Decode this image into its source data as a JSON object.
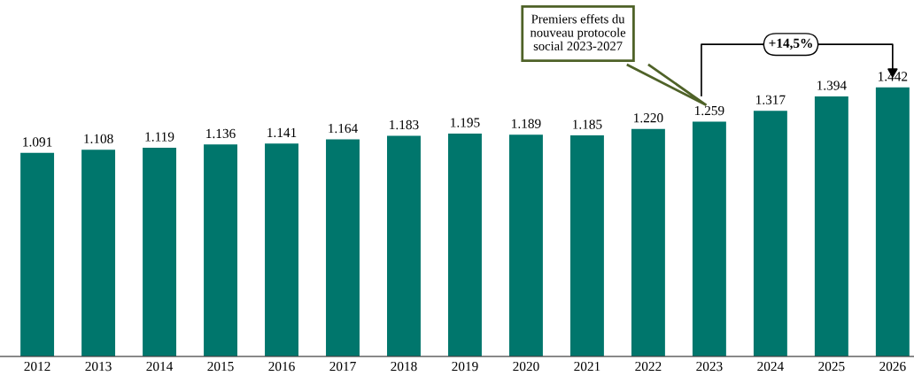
{
  "chart_data": {
    "type": "bar",
    "categories": [
      "2012",
      "2013",
      "2014",
      "2015",
      "2016",
      "2017",
      "2018",
      "2019",
      "2020",
      "2021",
      "2022",
      "2023",
      "2024",
      "2025",
      "2026"
    ],
    "values": [
      1091,
      1108,
      1119,
      1136,
      1141,
      1164,
      1183,
      1195,
      1189,
      1185,
      1220,
      1259,
      1317,
      1394,
      1442
    ],
    "value_labels": [
      "1.091",
      "1.108",
      "1.119",
      "1.136",
      "1.141",
      "1.164",
      "1.183",
      "1.195",
      "1.189",
      "1.185",
      "1.220",
      "1.259",
      "1.317",
      "1.394",
      "1.442"
    ],
    "color": "#00766c",
    "grid": false,
    "legend": false,
    "annotations": [
      "Premiers effets du\nnouveau protocole\nsocial 2023-2027",
      "+14,5%"
    ]
  }
}
